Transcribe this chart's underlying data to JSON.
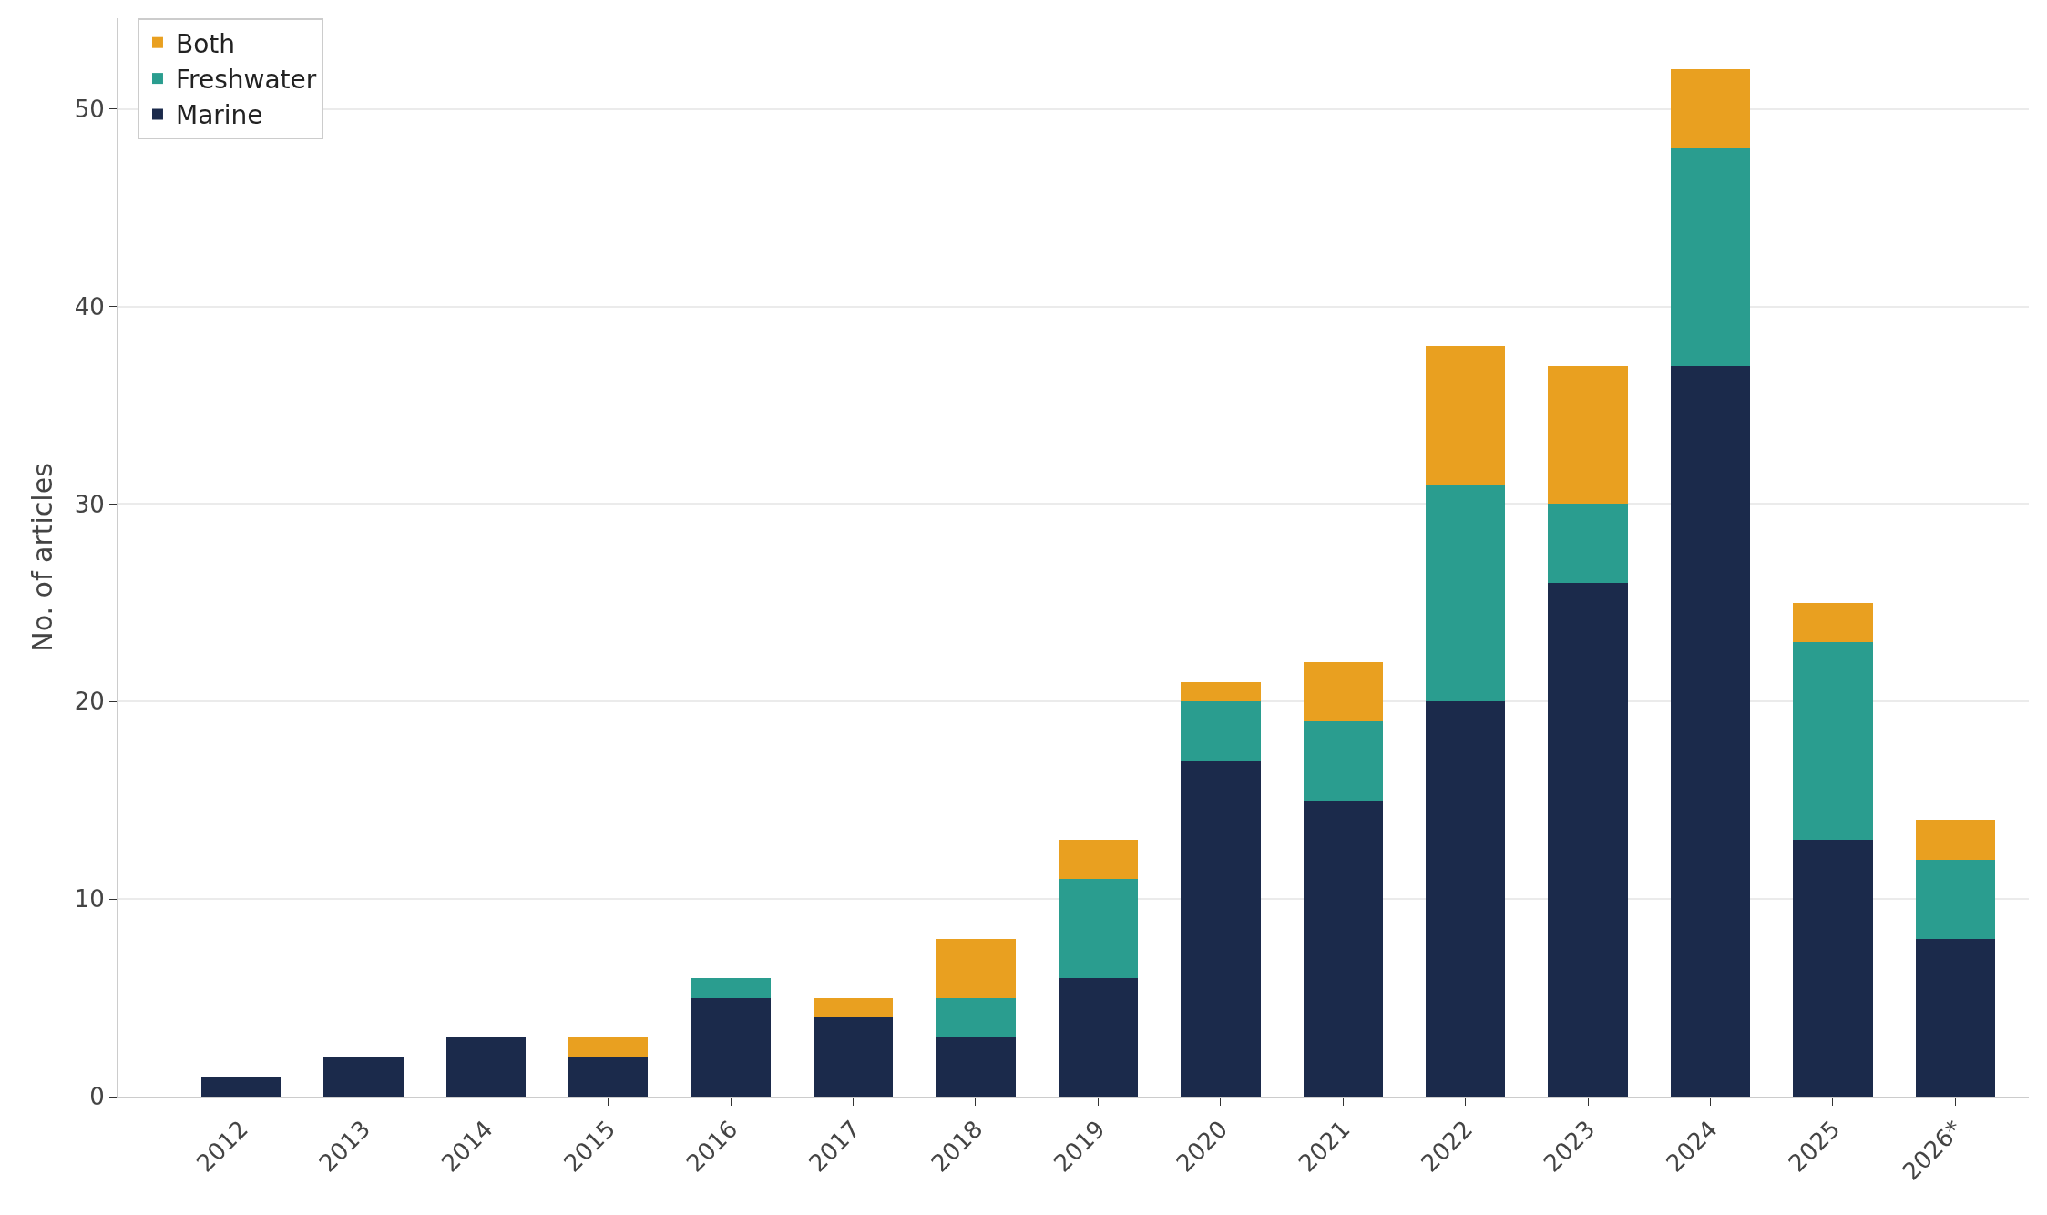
{
  "chart_data": {
    "type": "bar",
    "stacked": true,
    "ylabel": "No. of articles",
    "categories": [
      "2012",
      "2013",
      "2014",
      "2015",
      "2016",
      "2017",
      "2018",
      "2019",
      "2020",
      "2021",
      "2022",
      "2023",
      "2024",
      "2025",
      "2026*"
    ],
    "series": [
      {
        "name": "Marine",
        "color": "#1b2a4b",
        "values": [
          1,
          2,
          3,
          2,
          5,
          4,
          3,
          6,
          17,
          15,
          20,
          26,
          37,
          13,
          8
        ]
      },
      {
        "name": "Freshwater",
        "color": "#2a9d8f",
        "values": [
          0,
          0,
          0,
          0,
          1,
          0,
          2,
          5,
          3,
          4,
          11,
          4,
          11,
          10,
          4
        ]
      },
      {
        "name": "Both",
        "color": "#e9a020",
        "values": [
          0,
          0,
          0,
          1,
          0,
          1,
          3,
          2,
          1,
          3,
          7,
          7,
          4,
          2,
          2
        ]
      }
    ],
    "ylim": [
      0,
      54.6
    ],
    "yticks": [
      0,
      10,
      20,
      30,
      40,
      50
    ],
    "grid": "y",
    "legend": "top left"
  }
}
